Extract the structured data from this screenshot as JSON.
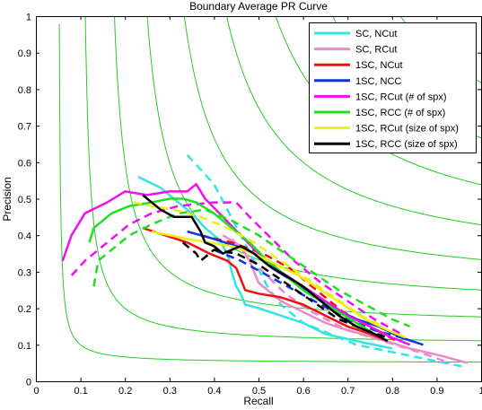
{
  "chart_data": {
    "type": "line",
    "title": "Boundary Average PR Curve",
    "xlabel": "Recall",
    "ylabel": "Precision",
    "xlim": [
      0,
      1
    ],
    "ylim": [
      0,
      1
    ],
    "grid": false,
    "legend_position": "top-right",
    "x_ticks": [
      "0",
      "0.1",
      "0.2",
      "0.3",
      "0.4",
      "0.5",
      "0.6",
      "0.7",
      "0.8",
      "0.9",
      "1"
    ],
    "y_ticks": [
      "0",
      "0.1",
      "0.2",
      "0.3",
      "0.4",
      "0.5",
      "0.6",
      "0.7",
      "0.8",
      "0.9",
      "1"
    ],
    "iso_f_contours": {
      "color": "#22cc22",
      "f_values": [
        0.1,
        0.2,
        0.3,
        0.4,
        0.5,
        0.6,
        0.7,
        0.8,
        0.9
      ]
    },
    "series": [
      {
        "name": "SC, NCut",
        "color": "#33e5e5",
        "solid": [
          [
            0.23,
            0.56
          ],
          [
            0.28,
            0.53
          ],
          [
            0.32,
            0.49
          ],
          [
            0.35,
            0.46
          ],
          [
            0.38,
            0.42
          ],
          [
            0.41,
            0.39
          ],
          [
            0.43,
            0.35
          ],
          [
            0.44,
            0.3
          ],
          [
            0.45,
            0.26
          ],
          [
            0.46,
            0.24
          ],
          [
            0.47,
            0.21
          ],
          [
            0.5,
            0.2
          ],
          [
            0.55,
            0.18
          ],
          [
            0.6,
            0.16
          ],
          [
            0.65,
            0.13
          ],
          [
            0.72,
            0.11
          ],
          [
            0.8,
            0.09
          ]
        ],
        "dashed": [
          [
            0.34,
            0.62
          ],
          [
            0.37,
            0.58
          ],
          [
            0.4,
            0.54
          ],
          [
            0.43,
            0.47
          ],
          [
            0.46,
            0.4
          ],
          [
            0.49,
            0.33
          ],
          [
            0.52,
            0.26
          ],
          [
            0.55,
            0.21
          ],
          [
            0.6,
            0.16
          ],
          [
            0.66,
            0.13
          ],
          [
            0.72,
            0.1
          ],
          [
            0.8,
            0.08
          ],
          [
            0.88,
            0.06
          ],
          [
            0.96,
            0.04
          ]
        ]
      },
      {
        "name": "SC, RCut",
        "color": "#ee88cc",
        "solid": [
          [
            0.42,
            0.4
          ],
          [
            0.46,
            0.37
          ],
          [
            0.48,
            0.33
          ],
          [
            0.5,
            0.27
          ],
          [
            0.55,
            0.22
          ],
          [
            0.6,
            0.19
          ],
          [
            0.65,
            0.16
          ],
          [
            0.7,
            0.14
          ],
          [
            0.76,
            0.12
          ],
          [
            0.84,
            0.09
          ],
          [
            0.91,
            0.07
          ],
          [
            0.97,
            0.05
          ]
        ],
        "dashed": [
          [
            0.44,
            0.39
          ],
          [
            0.47,
            0.35
          ],
          [
            0.51,
            0.3
          ],
          [
            0.56,
            0.24
          ],
          [
            0.62,
            0.19
          ],
          [
            0.7,
            0.14
          ],
          [
            0.78,
            0.11
          ],
          [
            0.86,
            0.08
          ],
          [
            0.93,
            0.05
          ]
        ]
      },
      {
        "name": "1SC, NCut",
        "color": "#ee1111",
        "solid": [
          [
            0.24,
            0.42
          ],
          [
            0.29,
            0.4
          ],
          [
            0.34,
            0.38
          ],
          [
            0.39,
            0.35
          ],
          [
            0.43,
            0.33
          ],
          [
            0.45,
            0.31
          ],
          [
            0.46,
            0.28
          ],
          [
            0.47,
            0.25
          ],
          [
            0.5,
            0.24
          ],
          [
            0.55,
            0.23
          ],
          [
            0.6,
            0.21
          ],
          [
            0.65,
            0.18
          ],
          [
            0.7,
            0.15
          ],
          [
            0.75,
            0.13
          ],
          [
            0.79,
            0.11
          ]
        ],
        "dashed": [
          [
            0.37,
            0.4
          ],
          [
            0.44,
            0.38
          ],
          [
            0.51,
            0.35
          ],
          [
            0.57,
            0.31
          ],
          [
            0.63,
            0.25
          ],
          [
            0.69,
            0.19
          ],
          [
            0.75,
            0.15
          ],
          [
            0.81,
            0.11
          ]
        ]
      },
      {
        "name": "1SC, NCC",
        "color": "#1133dd",
        "solid": [
          [
            0.34,
            0.41
          ],
          [
            0.4,
            0.39
          ],
          [
            0.45,
            0.37
          ],
          [
            0.49,
            0.35
          ],
          [
            0.53,
            0.31
          ],
          [
            0.57,
            0.28
          ],
          [
            0.62,
            0.24
          ],
          [
            0.67,
            0.2
          ],
          [
            0.72,
            0.17
          ],
          [
            0.77,
            0.15
          ],
          [
            0.82,
            0.12
          ],
          [
            0.87,
            0.1
          ]
        ],
        "dashed": [
          [
            0.4,
            0.36
          ],
          [
            0.46,
            0.33
          ],
          [
            0.52,
            0.29
          ],
          [
            0.58,
            0.25
          ],
          [
            0.64,
            0.21
          ],
          [
            0.7,
            0.17
          ],
          [
            0.76,
            0.14
          ],
          [
            0.82,
            0.12
          ]
        ]
      },
      {
        "name": "1SC, RCut (# of spx)",
        "color": "#ee11ee",
        "solid": [
          [
            0.06,
            0.33
          ],
          [
            0.08,
            0.4
          ],
          [
            0.11,
            0.46
          ],
          [
            0.16,
            0.49
          ],
          [
            0.2,
            0.52
          ],
          [
            0.25,
            0.51
          ],
          [
            0.3,
            0.52
          ],
          [
            0.34,
            0.52
          ],
          [
            0.36,
            0.54
          ],
          [
            0.38,
            0.5
          ],
          [
            0.42,
            0.45
          ],
          [
            0.46,
            0.4
          ],
          [
            0.5,
            0.35
          ],
          [
            0.55,
            0.3
          ],
          [
            0.6,
            0.26
          ],
          [
            0.65,
            0.22
          ],
          [
            0.7,
            0.18
          ],
          [
            0.75,
            0.15
          ],
          [
            0.8,
            0.12
          ],
          [
            0.84,
            0.1
          ]
        ],
        "dashed": [
          [
            0.08,
            0.29
          ],
          [
            0.11,
            0.33
          ],
          [
            0.16,
            0.38
          ],
          [
            0.21,
            0.43
          ],
          [
            0.26,
            0.46
          ],
          [
            0.32,
            0.48
          ],
          [
            0.4,
            0.49
          ],
          [
            0.45,
            0.49
          ],
          [
            0.48,
            0.45
          ],
          [
            0.53,
            0.39
          ],
          [
            0.58,
            0.33
          ],
          [
            0.64,
            0.27
          ],
          [
            0.7,
            0.22
          ],
          [
            0.76,
            0.17
          ],
          [
            0.82,
            0.13
          ]
        ]
      },
      {
        "name": "1SC, RCC (# of spx)",
        "color": "#22dd22",
        "solid": [
          [
            0.12,
            0.38
          ],
          [
            0.13,
            0.42
          ],
          [
            0.17,
            0.46
          ],
          [
            0.21,
            0.48
          ],
          [
            0.26,
            0.49
          ],
          [
            0.3,
            0.5
          ],
          [
            0.33,
            0.5
          ],
          [
            0.36,
            0.49
          ],
          [
            0.4,
            0.46
          ],
          [
            0.44,
            0.42
          ],
          [
            0.48,
            0.38
          ],
          [
            0.52,
            0.33
          ],
          [
            0.56,
            0.29
          ],
          [
            0.6,
            0.25
          ],
          [
            0.64,
            0.22
          ],
          [
            0.68,
            0.19
          ],
          [
            0.72,
            0.16
          ],
          [
            0.76,
            0.13
          ],
          [
            0.79,
            0.11
          ]
        ],
        "dashed": [
          [
            0.13,
            0.26
          ],
          [
            0.14,
            0.33
          ],
          [
            0.17,
            0.36
          ],
          [
            0.21,
            0.4
          ],
          [
            0.26,
            0.43
          ],
          [
            0.32,
            0.46
          ],
          [
            0.38,
            0.47
          ],
          [
            0.44,
            0.44
          ],
          [
            0.5,
            0.4
          ],
          [
            0.56,
            0.35
          ],
          [
            0.62,
            0.3
          ],
          [
            0.68,
            0.25
          ],
          [
            0.74,
            0.21
          ],
          [
            0.8,
            0.17
          ],
          [
            0.84,
            0.15
          ]
        ]
      },
      {
        "name": "1SC, RCut (size of spx)",
        "color": "#eeee11",
        "solid": [
          [
            0.26,
            0.41
          ],
          [
            0.3,
            0.4
          ],
          [
            0.34,
            0.39
          ],
          [
            0.39,
            0.38
          ],
          [
            0.44,
            0.37
          ],
          [
            0.49,
            0.35
          ],
          [
            0.54,
            0.32
          ],
          [
            0.59,
            0.29
          ],
          [
            0.64,
            0.25
          ],
          [
            0.69,
            0.21
          ],
          [
            0.74,
            0.17
          ],
          [
            0.79,
            0.14
          ],
          [
            0.83,
            0.12
          ]
        ],
        "dashed": [
          [
            0.22,
            0.49
          ],
          [
            0.26,
            0.48
          ],
          [
            0.31,
            0.47
          ],
          [
            0.37,
            0.45
          ],
          [
            0.43,
            0.42
          ],
          [
            0.49,
            0.38
          ],
          [
            0.55,
            0.33
          ],
          [
            0.61,
            0.28
          ],
          [
            0.67,
            0.23
          ],
          [
            0.73,
            0.18
          ],
          [
            0.78,
            0.15
          ]
        ]
      },
      {
        "name": "1SC, RCC (size of spx)",
        "color": "#000000",
        "solid": [
          [
            0.24,
            0.51
          ],
          [
            0.28,
            0.47
          ],
          [
            0.31,
            0.45
          ],
          [
            0.35,
            0.45
          ],
          [
            0.37,
            0.41
          ],
          [
            0.38,
            0.38
          ],
          [
            0.4,
            0.37
          ],
          [
            0.42,
            0.35
          ],
          [
            0.44,
            0.36
          ],
          [
            0.46,
            0.37
          ],
          [
            0.49,
            0.35
          ],
          [
            0.52,
            0.32
          ],
          [
            0.56,
            0.29
          ],
          [
            0.6,
            0.26
          ],
          [
            0.64,
            0.22
          ],
          [
            0.68,
            0.18
          ],
          [
            0.72,
            0.15
          ],
          [
            0.76,
            0.13
          ],
          [
            0.79,
            0.11
          ]
        ],
        "dashed": [
          [
            0.33,
            0.38
          ],
          [
            0.36,
            0.35
          ],
          [
            0.37,
            0.33
          ],
          [
            0.4,
            0.36
          ],
          [
            0.45,
            0.35
          ],
          [
            0.5,
            0.32
          ],
          [
            0.56,
            0.27
          ],
          [
            0.62,
            0.22
          ],
          [
            0.68,
            0.17
          ],
          [
            0.74,
            0.14
          ],
          [
            0.79,
            0.12
          ]
        ]
      }
    ]
  }
}
